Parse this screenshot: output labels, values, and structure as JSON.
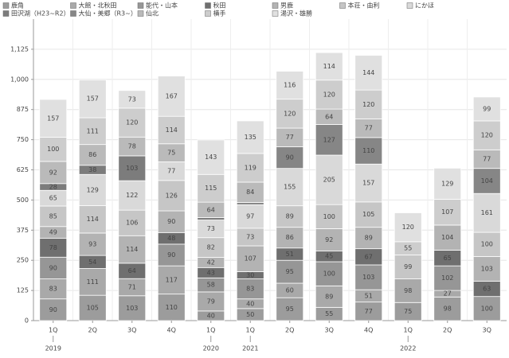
{
  "chart_data": {
    "type": "stacked_bar",
    "categories": [
      "1Q",
      "2Q",
      "3Q",
      "4Q",
      "1Q",
      "1Q",
      "2Q",
      "3Q",
      "4Q",
      "1Q",
      "2Q",
      "3Q"
    ],
    "category_groups": [
      "2019",
      null,
      null,
      null,
      "2020",
      "2021",
      null,
      null,
      null,
      "2022",
      null,
      null
    ],
    "ylim": [
      0,
      1250
    ],
    "yticks": [
      0,
      125,
      250,
      375,
      500,
      625,
      750,
      875,
      {
        "value": 1000,
        "label": "1,000"
      },
      {
        "value": 1125,
        "label": "1,125"
      }
    ],
    "grid": true,
    "legend": "top",
    "series": [
      {
        "name": "鹿角",
        "color": "#9c9c9c",
        "values": [
          90,
          105,
          103,
          110,
          40,
          50,
          95,
          55,
          77,
          75,
          98,
          100
        ]
      },
      {
        "name": "大館・北秋田",
        "color": "#a9a9a9",
        "values": [
          83,
          111,
          71,
          117,
          79,
          40,
          60,
          89,
          51,
          98,
          27,
          null
        ]
      },
      {
        "name": "能代・山本",
        "color": "#969696",
        "values": [
          90,
          null,
          null,
          90,
          58,
          83,
          95,
          100,
          103,
          null,
          102,
          null
        ]
      },
      {
        "name": "秋田",
        "color": "#6f6f6f",
        "values": [
          78,
          54,
          64,
          48,
          43,
          30,
          51,
          45,
          67,
          null,
          65,
          63
        ]
      },
      {
        "name": "男鹿",
        "color": "#b3b3b3",
        "values": [
          49,
          93,
          114,
          90,
          42,
          107,
          86,
          92,
          89,
          null,
          104,
          103
        ]
      },
      {
        "name": "本荘・由利",
        "color": "#c6c6c6",
        "values": [
          85,
          114,
          106,
          126,
          82,
          73,
          89,
          100,
          105,
          99,
          null,
          100
        ]
      },
      {
        "name": "にかほ",
        "color": "#d9d9d9",
        "values": [
          65,
          129,
          122,
          77,
          73,
          97,
          155,
          205,
          157,
          null,
          null,
          161
        ]
      },
      {
        "name": "田沢湖（H23~R2）",
        "color": "#7c7c7c",
        "values": [
          28,
          38,
          103,
          null,
          10,
          null,
          null,
          null,
          null,
          null,
          null,
          null
        ]
      },
      {
        "name": "大仙・美郷（R3~）",
        "color": "#868686",
        "values": [
          null,
          null,
          null,
          null,
          null,
          10,
          90,
          127,
          110,
          null,
          null,
          104
        ]
      },
      {
        "name": "仙北",
        "color": "#bababa",
        "values": [
          92,
          86,
          78,
          75,
          64,
          84,
          77,
          64,
          77,
          null,
          null,
          77
        ]
      },
      {
        "name": "横手",
        "color": "#cdcdcd",
        "values": [
          100,
          111,
          120,
          114,
          115,
          119,
          120,
          120,
          120,
          55,
          107,
          120
        ]
      },
      {
        "name": "湯沢・雄勝",
        "color": "#e0e0e0",
        "values": [
          157,
          157,
          73,
          167,
          143,
          135,
          116,
          114,
          144,
          120,
          129,
          99
        ]
      }
    ]
  }
}
